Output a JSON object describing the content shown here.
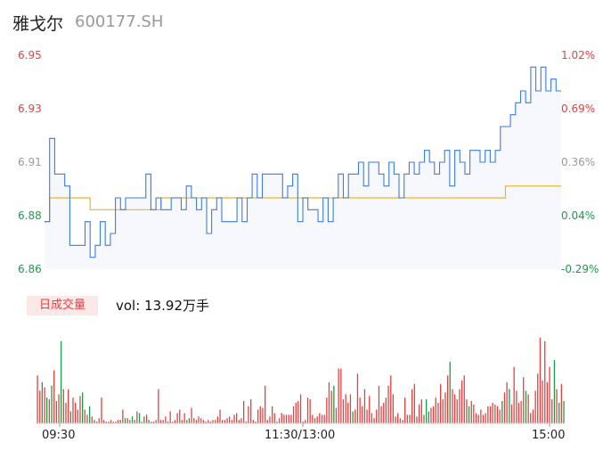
{
  "stock": {
    "name": "雅戈尔",
    "code": "600177.SH"
  },
  "price_axis": [
    {
      "label": "6.95",
      "color": "#e8403f"
    },
    {
      "label": "6.93",
      "color": "#e8403f"
    },
    {
      "label": "6.91",
      "color": "#999999"
    },
    {
      "label": "6.88",
      "color": "#1a9c4a"
    },
    {
      "label": "6.86",
      "color": "#1a9c4a"
    }
  ],
  "pct_axis": [
    {
      "label": "1.02%",
      "color": "#e8403f"
    },
    {
      "label": "0.69%",
      "color": "#e8403f"
    },
    {
      "label": "0.36%",
      "color": "#999999"
    },
    {
      "label": "0.04%",
      "color": "#1a9c4a"
    },
    {
      "label": "-0.29%",
      "color": "#1a9c4a"
    }
  ],
  "volume_panel": {
    "tag": "日成交量",
    "text": "vol: 13.92万手"
  },
  "time_axis": [
    "09:30",
    "11:30/13:00",
    "15:00"
  ],
  "colors": {
    "price_line": "#3b7ce6",
    "avg_line": "#f0b429",
    "up": "#e8403f",
    "down": "#1a9c4a"
  },
  "chart_data": [
    {
      "type": "line",
      "ylim": [
        6.86,
        6.95
      ],
      "series": [
        {
          "values": [
            6.88,
            6.915,
            6.9,
            6.9,
            6.895,
            6.87,
            6.87,
            6.87,
            6.88,
            6.865,
            6.87,
            6.88,
            6.87,
            6.875,
            6.89,
            6.885,
            6.89,
            6.89,
            6.89,
            6.89,
            6.9,
            6.885,
            6.89,
            6.885,
            6.885,
            6.89,
            6.89,
            6.885,
            6.895,
            6.89,
            6.885,
            6.89,
            6.875,
            6.885,
            6.89,
            6.88,
            6.88,
            6.88,
            6.89,
            6.88,
            6.89,
            6.9,
            6.89,
            6.9,
            6.9,
            6.9,
            6.9,
            6.89,
            6.895,
            6.9,
            6.88,
            6.89,
            6.885,
            6.885,
            6.88,
            6.89,
            6.88,
            6.89,
            6.9,
            6.89,
            6.9,
            6.9,
            6.905,
            6.895,
            6.905,
            6.905,
            6.9,
            6.895,
            6.905,
            6.9,
            6.89,
            6.9,
            6.905,
            6.9,
            6.905,
            6.91,
            6.905,
            6.9,
            6.905,
            6.91,
            6.895,
            6.91,
            6.905,
            6.9,
            6.91,
            6.91,
            6.905,
            6.91,
            6.905,
            6.91,
            6.92,
            6.92,
            6.925,
            6.93,
            6.935,
            6.93,
            6.945,
            6.935,
            6.945,
            6.935,
            6.94,
            6.935,
            6.935
          ]
        }
      ]
    },
    {
      "type": "line",
      "ylim": [
        6.86,
        6.95
      ],
      "series": [
        {
          "values": [
            6.88,
            6.89,
            6.89,
            6.89,
            6.89,
            6.89,
            6.89,
            6.89,
            6.89,
            6.885,
            6.885,
            6.885,
            6.885,
            6.885,
            6.885,
            6.885,
            6.885,
            6.885,
            6.885,
            6.885,
            6.885,
            6.885,
            6.885,
            6.89,
            6.89,
            6.89,
            6.89,
            6.89,
            6.89,
            6.89,
            6.89,
            6.89,
            6.89,
            6.89,
            6.89,
            6.89,
            6.89,
            6.89,
            6.89,
            6.89,
            6.89,
            6.89,
            6.89,
            6.89,
            6.89,
            6.89,
            6.89,
            6.89,
            6.89,
            6.89,
            6.89,
            6.89,
            6.89,
            6.89,
            6.89,
            6.89,
            6.89,
            6.89,
            6.89,
            6.89,
            6.89,
            6.89,
            6.89,
            6.89,
            6.89,
            6.89,
            6.89,
            6.89,
            6.89,
            6.89,
            6.89,
            6.89,
            6.89,
            6.89,
            6.89,
            6.89,
            6.89,
            6.89,
            6.89,
            6.89,
            6.89,
            6.89,
            6.89,
            6.89,
            6.89,
            6.89,
            6.89,
            6.89,
            6.89,
            6.89,
            6.89,
            6.895,
            6.895,
            6.895,
            6.895,
            6.895,
            6.895,
            6.895,
            6.895,
            6.895,
            6.895,
            6.895,
            6.895
          ]
        }
      ]
    },
    {
      "type": "bar",
      "series": [
        {
          "values": [
            28,
            19,
            24,
            21,
            15,
            14,
            22,
            31,
            13,
            17,
            48,
            20,
            12,
            20,
            7,
            15,
            12,
            8,
            16,
            18,
            8,
            5,
            10,
            4,
            2,
            1,
            3,
            15,
            2,
            1,
            1,
            2,
            1,
            1,
            2,
            2,
            8,
            3,
            3,
            2,
            4,
            2,
            7,
            6,
            1,
            4,
            5,
            2,
            1,
            1,
            2,
            20,
            2,
            2,
            4,
            1,
            7,
            1,
            2,
            6,
            8,
            2,
            6,
            2,
            3,
            9,
            3,
            2,
            4,
            3,
            2,
            1,
            2,
            1,
            2,
            2,
            4,
            8,
            2,
            2,
            3,
            4,
            2,
            5,
            6,
            2,
            3,
            13,
            1,
            10,
            14,
            2,
            1,
            8,
            10,
            9,
            22,
            2,
            4,
            10,
            6,
            1,
            3,
            6,
            5,
            5,
            5,
            5,
            10,
            12,
            13,
            17,
            1,
            2,
            15,
            14,
            5,
            3,
            4,
            6,
            5,
            5,
            15,
            24,
            19,
            22,
            9,
            32,
            32,
            14,
            17,
            12,
            17,
            7,
            8,
            29,
            15,
            10,
            20,
            8,
            16,
            6,
            3,
            8,
            22,
            10,
            12,
            15,
            22,
            28,
            17,
            4,
            6,
            3,
            2,
            15,
            5,
            5,
            20,
            23,
            4,
            11,
            14,
            5,
            14,
            7,
            9,
            10,
            15,
            12,
            23,
            14,
            18,
            28,
            36,
            20,
            17,
            14,
            20,
            25,
            28,
            14,
            10,
            13,
            11,
            6,
            5,
            8,
            5,
            6,
            10,
            10,
            12,
            11,
            10,
            8,
            13,
            18,
            24,
            20,
            11,
            33,
            19,
            12,
            13,
            27,
            19,
            17,
            6,
            8,
            19,
            29,
            50,
            25,
            48,
            24,
            33,
            14,
            37,
            20,
            12,
            23,
            13
          ],
          "up_flags": [
            1,
            1,
            0,
            1,
            0,
            1,
            0,
            1,
            1,
            1,
            0,
            1,
            1,
            1,
            0,
            1,
            1,
            1,
            1,
            0,
            1,
            1,
            0,
            1,
            1,
            1,
            1,
            1,
            1,
            1,
            1,
            1,
            1,
            1,
            1,
            1,
            1,
            0,
            1,
            1,
            0,
            1,
            1,
            0,
            1,
            0,
            1,
            0,
            1,
            1,
            1,
            1,
            1,
            1,
            1,
            1,
            1,
            1,
            1,
            1,
            1,
            1,
            1,
            1,
            0,
            1,
            1,
            1,
            1,
            1,
            1,
            1,
            1,
            1,
            1,
            1,
            1,
            1,
            1,
            1,
            1,
            1,
            1,
            1,
            1,
            1,
            1,
            1,
            1,
            1,
            1,
            1,
            1,
            1,
            1,
            1,
            1,
            1,
            1,
            1,
            1,
            1,
            1,
            1,
            1,
            1,
            1,
            1,
            1,
            1,
            1,
            1,
            1,
            1,
            1,
            1,
            1,
            1,
            1,
            1,
            1,
            1,
            1,
            1,
            1,
            0,
            1,
            1,
            1,
            1,
            1,
            1,
            1,
            0,
            1,
            1,
            1,
            1,
            1,
            1,
            1,
            1,
            1,
            1,
            1,
            1,
            1,
            1,
            1,
            1,
            1,
            1,
            1,
            1,
            1,
            1,
            1,
            1,
            1,
            1,
            1,
            1,
            1,
            1,
            0,
            0,
            1,
            1,
            1,
            1,
            1,
            1,
            1,
            1,
            0,
            1,
            1,
            1,
            1,
            1,
            1,
            1,
            0,
            1,
            1,
            1,
            1,
            1,
            1,
            1,
            1,
            1,
            1,
            1,
            1,
            1,
            0,
            1,
            1,
            0,
            1,
            1,
            1,
            1,
            1,
            1,
            0,
            1,
            1,
            1,
            1,
            1,
            1,
            1,
            1,
            1,
            1,
            1,
            0,
            1,
            0,
            1,
            0
          ]
        }
      ]
    }
  ]
}
